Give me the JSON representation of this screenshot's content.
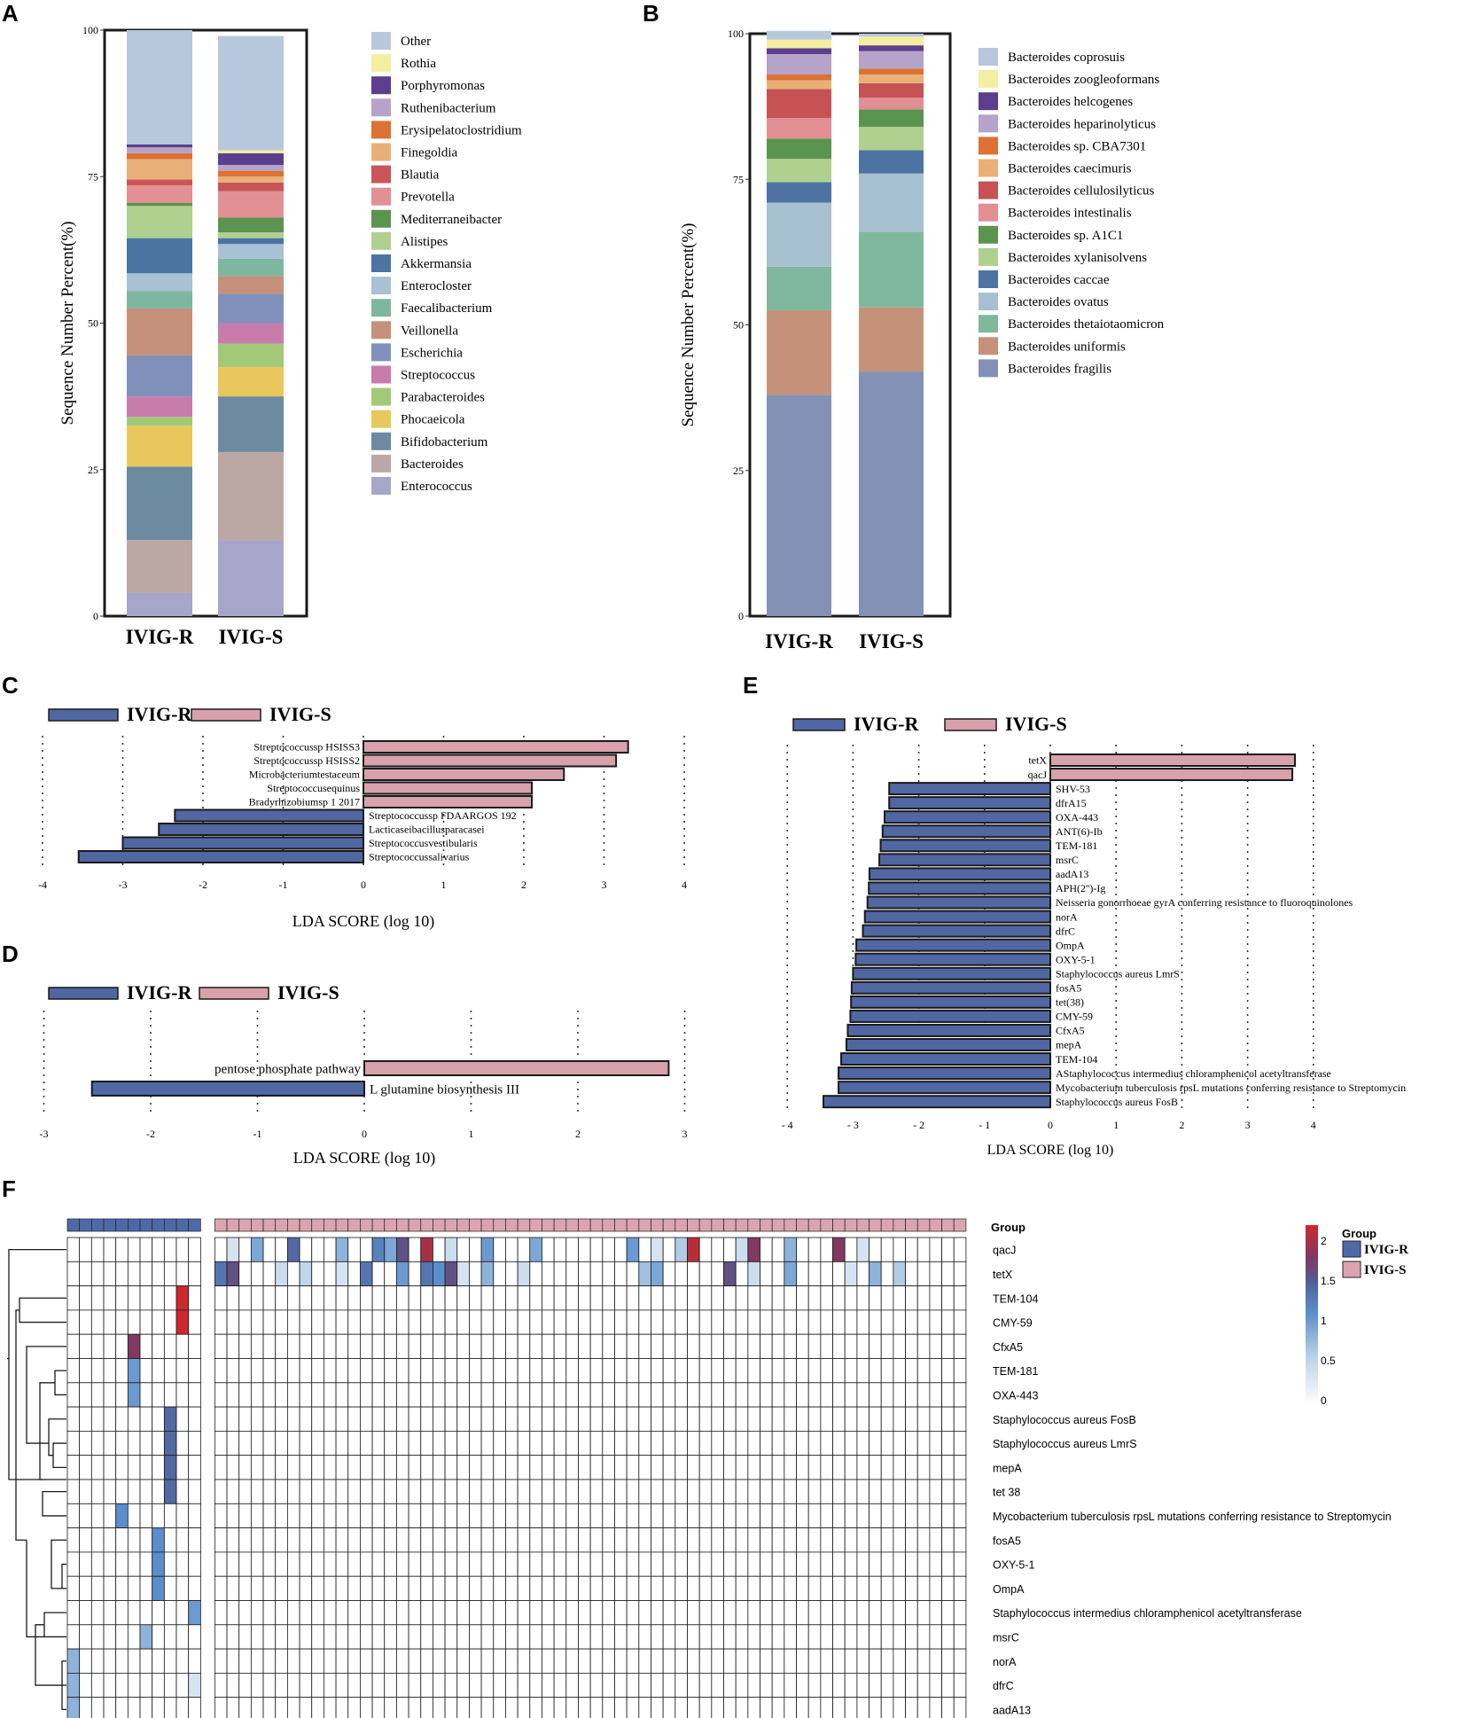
{
  "panel_letters": {
    "a": "A",
    "b": "B",
    "c": "C",
    "d": "D",
    "e": "E",
    "f": "F"
  },
  "chart_data": [
    {
      "panel": "A",
      "type": "bar",
      "stacked": true,
      "ylabel": "Sequence Number Percent(%)",
      "ylim": [
        0,
        100
      ],
      "yticks": [
        0,
        25,
        50,
        75,
        100
      ],
      "categories": [
        "IVIG-R",
        "IVIG-S"
      ],
      "series": [
        {
          "name": "Enterococcus",
          "color": "#a7a6c8",
          "values": [
            4,
            13
          ]
        },
        {
          "name": "Bacteroides",
          "color": "#bba7a4",
          "values": [
            9,
            15
          ]
        },
        {
          "name": "Bifidobacterium",
          "color": "#6c8aa0",
          "values": [
            12.5,
            9.5
          ]
        },
        {
          "name": "Phocaeicola",
          "color": "#e9c75c",
          "values": [
            7,
            5
          ]
        },
        {
          "name": "Parabacteroides",
          "color": "#a3c978",
          "values": [
            1.5,
            4
          ]
        },
        {
          "name": "Streptococcus",
          "color": "#c77cac",
          "values": [
            3.5,
            3.5
          ]
        },
        {
          "name": "Escherichia",
          "color": "#7f91ba",
          "values": [
            7,
            5
          ]
        },
        {
          "name": "Veillonella",
          "color": "#c5917a",
          "values": [
            8,
            3
          ]
        },
        {
          "name": "Faecalibacterium",
          "color": "#7fb69f",
          "values": [
            3,
            3
          ]
        },
        {
          "name": "Enterocloster",
          "color": "#a8c1d4",
          "values": [
            3,
            2.5
          ]
        },
        {
          "name": "Akkermansia",
          "color": "#4b74a3",
          "values": [
            6,
            1
          ]
        },
        {
          "name": "Alistipes",
          "color": "#afd08f",
          "values": [
            5.5,
            1
          ]
        },
        {
          "name": "Mediterraneibacter",
          "color": "#5a9450",
          "values": [
            0.5,
            2.5
          ]
        },
        {
          "name": "Prevotella",
          "color": "#e29093",
          "values": [
            3,
            4.5
          ]
        },
        {
          "name": "Blautia",
          "color": "#c95557",
          "values": [
            1,
            1.5
          ]
        },
        {
          "name": "Finegoldia",
          "color": "#e8b078",
          "values": [
            3.5,
            1
          ]
        },
        {
          "name": "Erysipelatoclostridium",
          "color": "#dc7233",
          "values": [
            1,
            1
          ]
        },
        {
          "name": "Ruthenibacterium",
          "color": "#b5a3c9",
          "values": [
            1,
            1
          ]
        },
        {
          "name": "Porphyromonas",
          "color": "#5b3e8c",
          "values": [
            0.5,
            2
          ]
        },
        {
          "name": "Rothia",
          "color": "#f3eea0",
          "values": [
            0,
            0.5
          ]
        },
        {
          "name": "Other",
          "color": "#b8c8dc",
          "values": [
            19.5,
            19.5
          ]
        }
      ]
    },
    {
      "panel": "B",
      "type": "bar",
      "stacked": true,
      "ylabel": "Sequence Number Percent(%)",
      "ylim": [
        0,
        100
      ],
      "yticks": [
        0,
        25,
        50,
        75,
        100
      ],
      "categories": [
        "IVIG-R",
        "IVIG-S"
      ],
      "series": [
        {
          "name": "Bacteroides fragilis",
          "color": "#8391b7",
          "values": [
            38,
            42
          ]
        },
        {
          "name": "Bacteroides uniformis",
          "color": "#c59179",
          "values": [
            14.5,
            11
          ]
        },
        {
          "name": "Bacteroides thetaiotaomicron",
          "color": "#80b89d",
          "values": [
            7.5,
            13
          ]
        },
        {
          "name": "Bacteroides ovatus",
          "color": "#a7c0cf",
          "values": [
            11,
            10
          ]
        },
        {
          "name": "Bacteroides caccae",
          "color": "#4d73a3",
          "values": [
            3.5,
            4
          ]
        },
        {
          "name": "Bacteroides xylanisolvens",
          "color": "#afd08f",
          "values": [
            4,
            4
          ]
        },
        {
          "name": "Bacteroides sp. A1C1",
          "color": "#5b944e",
          "values": [
            3.5,
            3
          ]
        },
        {
          "name": "Bacteroides intestinalis",
          "color": "#e28f93",
          "values": [
            3.5,
            2
          ]
        },
        {
          "name": "Bacteroides cellulosilyticus",
          "color": "#c65254",
          "values": [
            5,
            2.5
          ]
        },
        {
          "name": "Bacteroides caecimuris",
          "color": "#e9b077",
          "values": [
            1.5,
            1.5
          ]
        },
        {
          "name": "Bacteroides sp. CBA7301",
          "color": "#dc7233",
          "values": [
            1,
            1
          ]
        },
        {
          "name": "Bacteroides heparinolyticus",
          "color": "#b5a3c9",
          "values": [
            3.5,
            3
          ]
        },
        {
          "name": "Bacteroides helcogenes",
          "color": "#5b3e8c",
          "values": [
            1,
            1
          ]
        },
        {
          "name": "Bacteroides zoogleoformans",
          "color": "#f4eea2",
          "values": [
            1.5,
            1.5
          ]
        },
        {
          "name": "Bacteroides coprosuis",
          "color": "#b7c7dc",
          "values": [
            1.5,
            0.5
          ]
        }
      ]
    },
    {
      "panel": "C",
      "type": "bar",
      "orientation": "horizontal",
      "xlabel": "LDA SCORE (log 10)",
      "xlim": [
        -4,
        4
      ],
      "xticks": [
        -4,
        -3,
        -2,
        -1,
        0,
        1,
        2,
        3,
        4
      ],
      "legend": [
        {
          "name": "IVIG-R",
          "color": "#5067a4"
        },
        {
          "name": "IVIG-S",
          "color": "#d9a1ab"
        }
      ],
      "bars": [
        {
          "label": "Streptococcussp HSISS3",
          "value": 3.3,
          "group": "IVIG-S"
        },
        {
          "label": "Streptococcussp HSISS2",
          "value": 3.15,
          "group": "IVIG-S"
        },
        {
          "label": "Microbacteriumtestaceum",
          "value": 2.5,
          "group": "IVIG-S"
        },
        {
          "label": "Streptococcusequinus",
          "value": 2.1,
          "group": "IVIG-S"
        },
        {
          "label": "Bradyrhizobiumsp 1 2017",
          "value": 2.1,
          "group": "IVIG-S"
        },
        {
          "label": "Streptococcussp FDAARGOS 192",
          "value": -2.35,
          "group": "IVIG-R"
        },
        {
          "label": "Lacticaseibacillusparacasei",
          "value": -2.55,
          "group": "IVIG-R"
        },
        {
          "label": "Streptococcusvestibularis",
          "value": -3.0,
          "group": "IVIG-R"
        },
        {
          "label": "Streptococcussalivarius",
          "value": -3.55,
          "group": "IVIG-R"
        }
      ]
    },
    {
      "panel": "D",
      "type": "bar",
      "orientation": "horizontal",
      "xlabel": "LDA SCORE (log 10)",
      "xlim": [
        -3,
        3
      ],
      "xticks": [
        -3,
        -2,
        -1,
        0,
        1,
        2,
        3
      ],
      "legend": [
        {
          "name": "IVIG-R",
          "color": "#5067a4"
        },
        {
          "name": "IVIG-S",
          "color": "#d9a1ab"
        }
      ],
      "bars": [
        {
          "label": "pentose phosphate pathway",
          "value": 2.85,
          "group": "IVIG-S"
        },
        {
          "label": "L glutamine biosynthesis III",
          "value": -2.55,
          "group": "IVIG-R"
        }
      ]
    },
    {
      "panel": "E",
      "type": "bar",
      "orientation": "horizontal",
      "xlabel": "LDA SCORE (log 10)",
      "xlim": [
        -4,
        4
      ],
      "xticks": [
        -4,
        -3,
        -2,
        -1,
        0,
        1,
        2,
        3,
        4
      ],
      "legend": [
        {
          "name": "IVIG-R",
          "color": "#5067a4"
        },
        {
          "name": "IVIG-S",
          "color": "#d9a1ab"
        }
      ],
      "bars": [
        {
          "label": "tetX",
          "value": 3.72,
          "group": "IVIG-S"
        },
        {
          "label": "qacJ",
          "value": 3.68,
          "group": "IVIG-S"
        },
        {
          "label": "SHV-53",
          "value": -2.45,
          "group": "IVIG-R"
        },
        {
          "label": "dfrA15",
          "value": -2.45,
          "group": "IVIG-R"
        },
        {
          "label": "OXA-443",
          "value": -2.52,
          "group": "IVIG-R"
        },
        {
          "label": "ANT(6)-Ib",
          "value": -2.55,
          "group": "IVIG-R"
        },
        {
          "label": "TEM-181",
          "value": -2.58,
          "group": "IVIG-R"
        },
        {
          "label": "msrC",
          "value": -2.6,
          "group": "IVIG-R"
        },
        {
          "label": "aadA13",
          "value": -2.75,
          "group": "IVIG-R"
        },
        {
          "label": "APH(2'')-Ig",
          "value": -2.76,
          "group": "IVIG-R"
        },
        {
          "label": "Neisseria gonorrhoeae gyrA conferring resistance to fluoroquinolones",
          "value": -2.78,
          "group": "IVIG-R"
        },
        {
          "label": "norA",
          "value": -2.82,
          "group": "IVIG-R"
        },
        {
          "label": "dfrC",
          "value": -2.85,
          "group": "IVIG-R"
        },
        {
          "label": "OmpA",
          "value": -2.95,
          "group": "IVIG-R"
        },
        {
          "label": "OXY-5-1",
          "value": -2.96,
          "group": "IVIG-R"
        },
        {
          "label": "Staphylococcus aureus LmrS",
          "value": -3.0,
          "group": "IVIG-R"
        },
        {
          "label": "fosA5",
          "value": -3.02,
          "group": "IVIG-R"
        },
        {
          "label": "tet(38)",
          "value": -3.03,
          "group": "IVIG-R"
        },
        {
          "label": "CMY-59",
          "value": -3.04,
          "group": "IVIG-R"
        },
        {
          "label": "CfxA5",
          "value": -3.08,
          "group": "IVIG-R"
        },
        {
          "label": "mepA",
          "value": -3.1,
          "group": "IVIG-R"
        },
        {
          "label": "TEM-104",
          "value": -3.18,
          "group": "IVIG-R"
        },
        {
          "label": "AStaphylococcus intermedius chloramphenicol acetyltransferase",
          "value": -3.22,
          "group": "IVIG-R"
        },
        {
          "label": "Mycobacterium tuberculosis rpsL mutations conferring resistance to Streptomycin",
          "value": -3.22,
          "group": "IVIG-R"
        },
        {
          "label": "Staphylococcus aureus FosB",
          "value": -3.45,
          "group": "IVIG-R"
        }
      ]
    },
    {
      "panel": "F",
      "type": "heatmap",
      "group_label": "Group",
      "color_label": "Group",
      "columns_R": 11,
      "columns_S": 62,
      "groups": [
        {
          "name": "IVIG-R",
          "color": "#4d6aa8"
        },
        {
          "name": "IVIG-S",
          "color": "#dba4b0"
        }
      ],
      "color_scale": {
        "min": 0,
        "max": 2.2,
        "ticks": [
          0,
          0.5,
          1,
          1.5,
          2
        ]
      },
      "rows": [
        "qacJ",
        "tetX",
        "TEM-104",
        "CMY-59",
        "CfxA5",
        "TEM-181",
        "OXA-443",
        "Staphylococcus aureus FosB",
        "Staphylococcus aureus LmrS",
        "mepA",
        "tet 38",
        "Mycobacterium tuberculosis rpsL mutations conferring resistance to Streptomycin",
        "fosA5",
        "OXY-5-1",
        "OmpA",
        "Staphylococcus intermedius chloramphenicol acetyltransferase",
        "msrC",
        "norA",
        "dfrC",
        "aadA13"
      ],
      "cells": [
        [
          0,
          12,
          0.3
        ],
        [
          0,
          14,
          0.9
        ],
        [
          0,
          17,
          1.4
        ],
        [
          0,
          21,
          0.8
        ],
        [
          0,
          24,
          1.2
        ],
        [
          0,
          25,
          0.9
        ],
        [
          0,
          26,
          1.6
        ],
        [
          0,
          28,
          2.0
        ],
        [
          0,
          30,
          0.4
        ],
        [
          0,
          33,
          1.0
        ],
        [
          0,
          37,
          0.9
        ],
        [
          0,
          45,
          1.0
        ],
        [
          0,
          47,
          0.3
        ],
        [
          0,
          49,
          0.6
        ],
        [
          0,
          50,
          2.1
        ],
        [
          0,
          54,
          0.4
        ],
        [
          0,
          55,
          1.8
        ],
        [
          0,
          58,
          0.8
        ],
        [
          0,
          62,
          1.8
        ],
        [
          0,
          64,
          0.3
        ],
        [
          1,
          11,
          1.3
        ],
        [
          1,
          12,
          1.6
        ],
        [
          1,
          16,
          0.4
        ],
        [
          1,
          18,
          0.5
        ],
        [
          1,
          21,
          0.3
        ],
        [
          1,
          23,
          1.3
        ],
        [
          1,
          26,
          1.0
        ],
        [
          1,
          28,
          1.3
        ],
        [
          1,
          29,
          1.1
        ],
        [
          1,
          30,
          1.6
        ],
        [
          1,
          31,
          0.3
        ],
        [
          1,
          33,
          0.8
        ],
        [
          1,
          36,
          0.4
        ],
        [
          1,
          46,
          0.7
        ],
        [
          1,
          47,
          0.9
        ],
        [
          1,
          53,
          1.6
        ],
        [
          1,
          55,
          0.4
        ],
        [
          1,
          58,
          0.9
        ],
        [
          1,
          63,
          0.3
        ],
        [
          1,
          65,
          0.8
        ],
        [
          1,
          67,
          0.6
        ],
        [
          2,
          9,
          2.2
        ],
        [
          3,
          9,
          2.2
        ],
        [
          4,
          5,
          1.8
        ],
        [
          5,
          5,
          1.0
        ],
        [
          6,
          5,
          1.0
        ],
        [
          7,
          8,
          1.4
        ],
        [
          8,
          8,
          1.4
        ],
        [
          9,
          8,
          1.4
        ],
        [
          10,
          8,
          1.4
        ],
        [
          11,
          4,
          1.1
        ],
        [
          12,
          7,
          1.1
        ],
        [
          13,
          7,
          1.1
        ],
        [
          14,
          7,
          1.1
        ],
        [
          15,
          10,
          1.0
        ],
        [
          16,
          6,
          0.8
        ],
        [
          17,
          0,
          0.8
        ],
        [
          18,
          0,
          0.8
        ],
        [
          18,
          10,
          0.3
        ],
        [
          19,
          0,
          0.8
        ]
      ]
    }
  ]
}
